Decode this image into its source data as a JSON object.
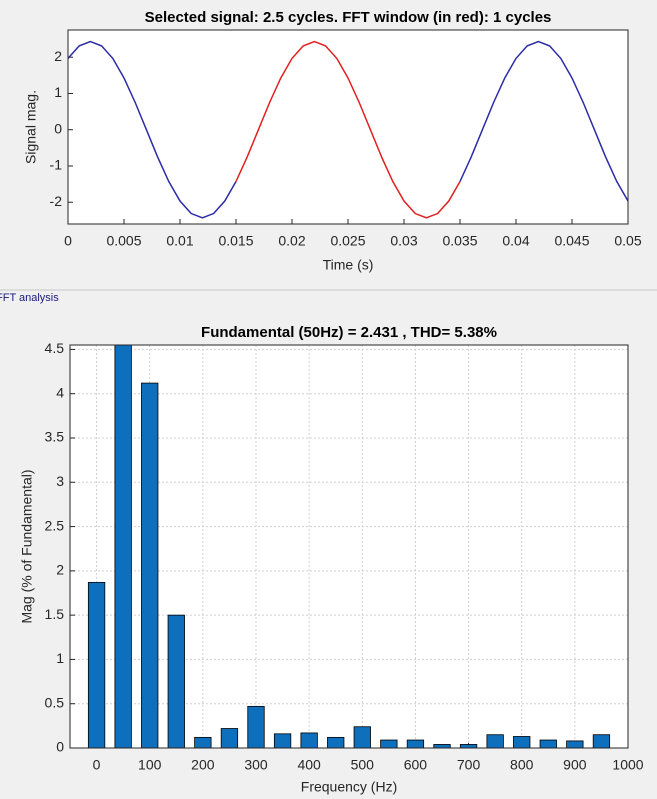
{
  "chart_data": [
    {
      "type": "line",
      "title": "Selected signal: 2.5 cycles. FFT window (in red): 1 cycles",
      "xlabel": "Time (s)",
      "ylabel": "Signal mag.",
      "x": [
        0,
        0.001,
        0.002,
        0.003,
        0.004,
        0.005,
        0.006,
        0.007,
        0.008,
        0.009,
        0.01,
        0.011,
        0.012,
        0.013,
        0.014,
        0.015,
        0.016,
        0.017,
        0.018,
        0.019,
        0.02,
        0.021,
        0.022,
        0.023,
        0.024,
        0.025,
        0.026,
        0.027,
        0.028,
        0.029,
        0.03,
        0.031,
        0.032,
        0.033,
        0.034,
        0.035,
        0.036,
        0.037,
        0.038,
        0.039,
        0.04,
        0.041,
        0.042,
        0.043,
        0.044,
        0.045,
        0.046,
        0.047,
        0.048,
        0.049,
        0.05
      ],
      "series": [
        {
          "color": "#2b2ba8",
          "values": [
            1.966,
            2.311,
            2.43,
            2.311,
            1.966,
            1.428,
            0.751,
            0,
            -0.751,
            -1.428,
            -1.966,
            -2.311,
            -2.43,
            -2.311,
            -1.966,
            -1.428,
            null,
            null,
            null,
            null,
            null,
            null,
            null,
            null,
            null,
            null,
            null,
            null,
            null,
            null,
            null,
            null,
            null,
            null,
            null,
            -1.428,
            -0.751,
            0,
            0.751,
            1.428,
            1.966,
            2.311,
            2.43,
            2.311,
            1.966,
            1.428,
            0.751,
            0,
            -0.751,
            -1.428,
            -1.966
          ]
        },
        {
          "color": "#e02020",
          "values": [
            null,
            null,
            null,
            null,
            null,
            null,
            null,
            null,
            null,
            null,
            null,
            null,
            null,
            null,
            null,
            -1.428,
            -0.751,
            0,
            0.751,
            1.428,
            1.966,
            2.311,
            2.43,
            2.311,
            1.966,
            1.428,
            0.751,
            0,
            -0.751,
            -1.428,
            -1.966,
            -2.311,
            -2.43,
            -2.311,
            -1.966,
            -1.428,
            null,
            null,
            null,
            null,
            null,
            null,
            null,
            null,
            null,
            null,
            null,
            null,
            null,
            null,
            null
          ]
        }
      ],
      "xlim": [
        0,
        0.05
      ],
      "xticks": [
        0,
        0.005,
        0.01,
        0.015,
        0.02,
        0.025,
        0.03,
        0.035,
        0.04,
        0.045,
        0.05
      ],
      "ylim": [
        -2.6,
        2.75
      ],
      "yticks": [
        -2,
        -1,
        0,
        1,
        2
      ],
      "grid": false
    },
    {
      "type": "bar",
      "title": "Fundamental (50Hz) = 2.431 , THD= 5.38%",
      "xlabel": "Frequency (Hz)",
      "ylabel": "Mag (% of Fundamental)",
      "x": [
        0,
        50,
        100,
        150,
        200,
        250,
        300,
        350,
        400,
        450,
        500,
        550,
        600,
        650,
        700,
        750,
        800,
        850,
        900,
        950
      ],
      "values": [
        1.87,
        4.6,
        4.12,
        1.5,
        0.12,
        0.22,
        0.47,
        0.16,
        0.17,
        0.12,
        0.24,
        0.09,
        0.09,
        0.04,
        0.04,
        0.15,
        0.13,
        0.09,
        0.08,
        0.15
      ],
      "color": "#0e6fbd",
      "xlim": [
        -50,
        1000
      ],
      "xticks": [
        0,
        100,
        200,
        300,
        400,
        500,
        600,
        700,
        800,
        900,
        1000
      ],
      "ylim": [
        0,
        4.55
      ],
      "yticks": [
        0,
        0.5,
        1,
        1.5,
        2,
        2.5,
        3,
        3.5,
        4,
        4.5
      ],
      "grid": true
    }
  ],
  "panel_label": "FFT analysis"
}
